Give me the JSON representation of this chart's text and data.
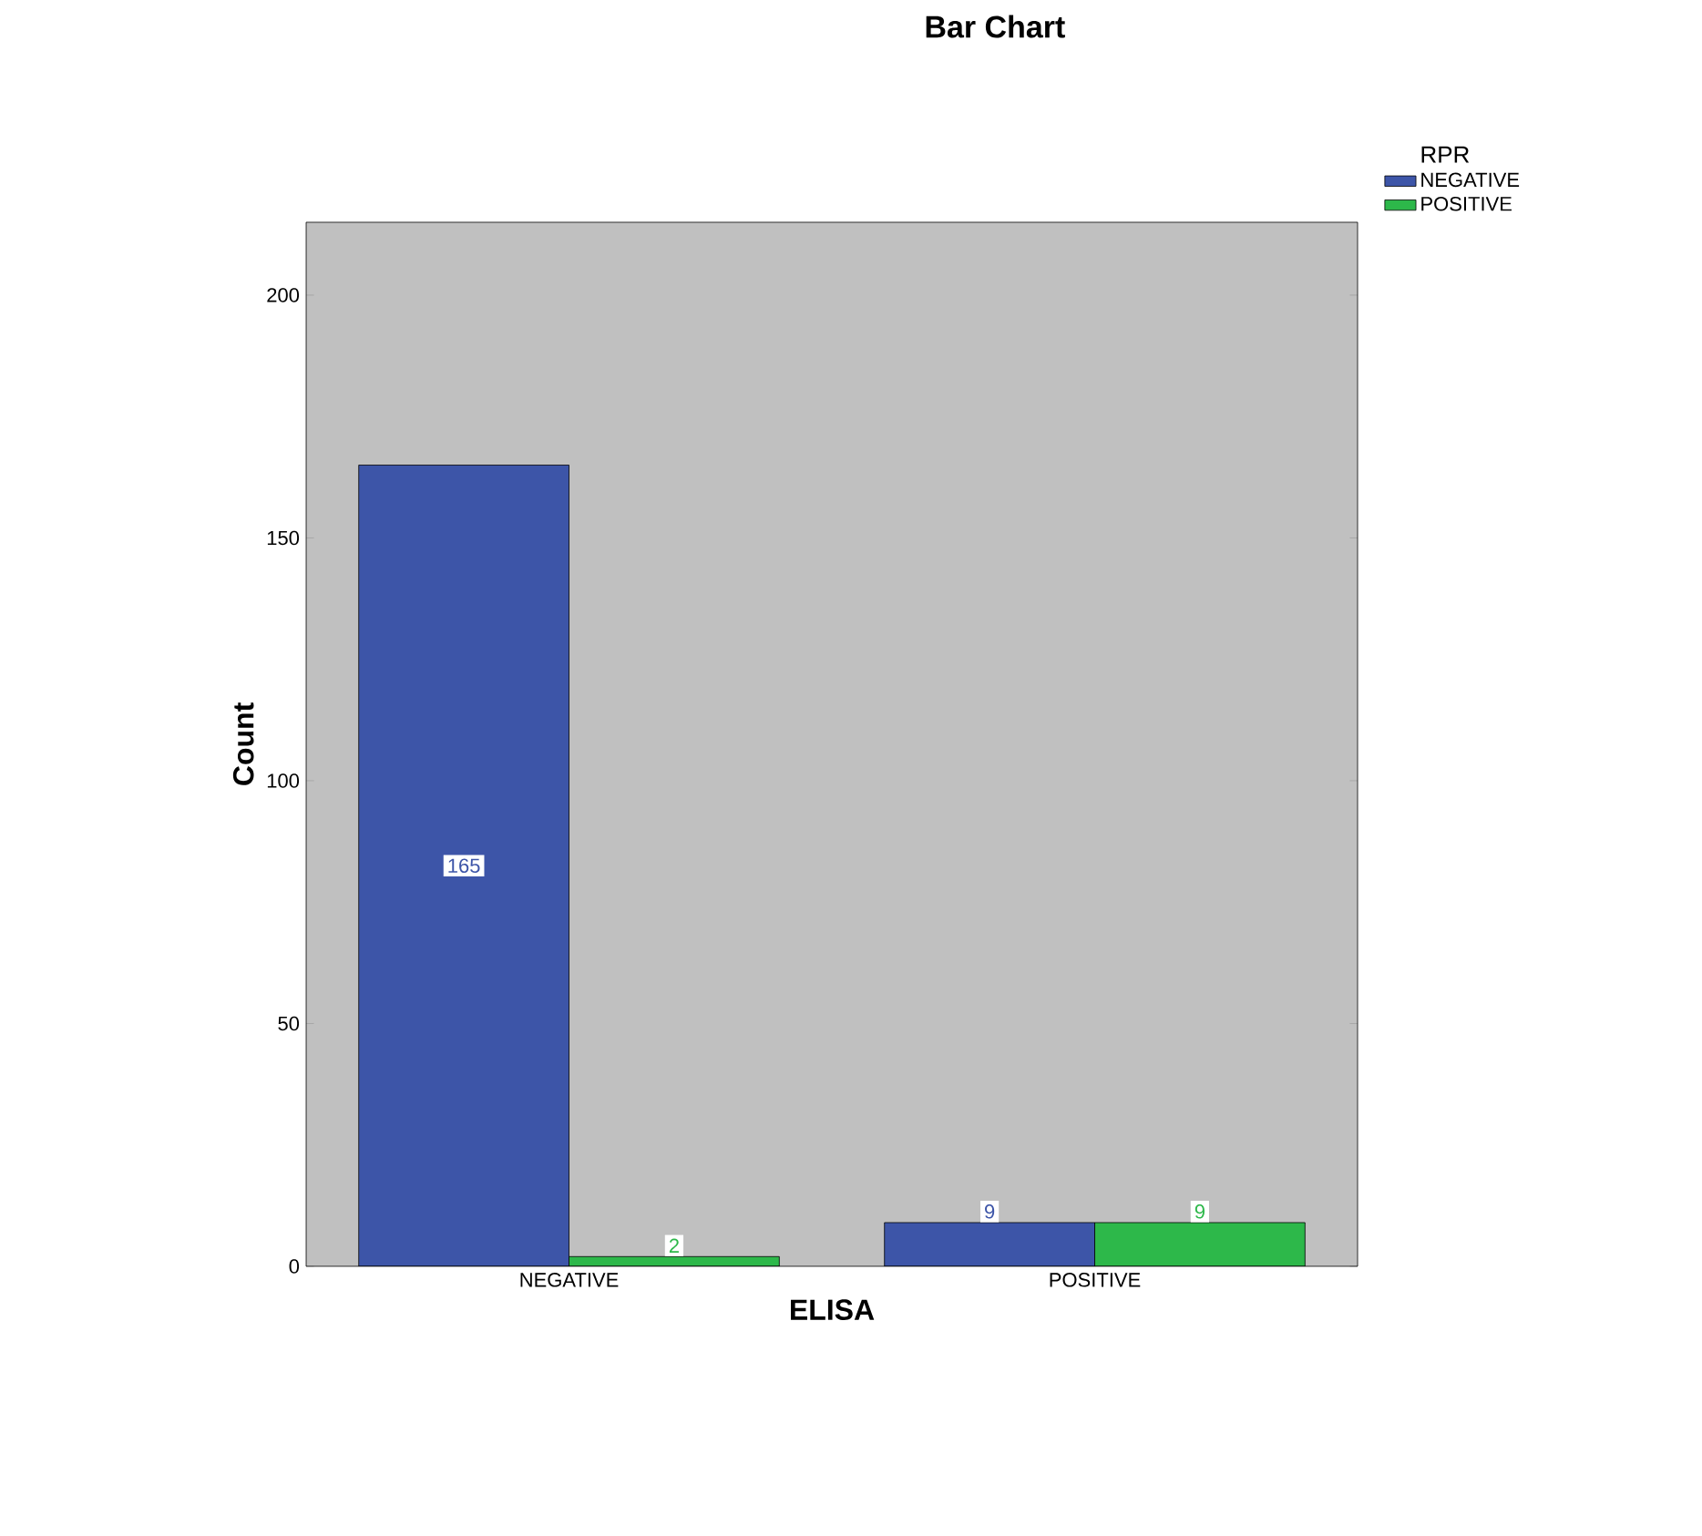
{
  "chart_data": {
    "type": "bar",
    "title": "Bar Chart",
    "xlabel": "ELISA",
    "ylabel": "Count",
    "legend_title": "RPR",
    "categories": [
      "NEGATIVE",
      "POSITIVE"
    ],
    "series": [
      {
        "name": "NEGATIVE",
        "color": "#3d55a8",
        "values": [
          165,
          9
        ]
      },
      {
        "name": "POSITIVE",
        "color": "#2db84a",
        "values": [
          2,
          9
        ]
      }
    ],
    "ylim": [
      0,
      215
    ],
    "yticks": [
      0,
      50,
      100,
      150,
      200
    ],
    "data_labels": true,
    "legend": "top right",
    "grid": false
  }
}
